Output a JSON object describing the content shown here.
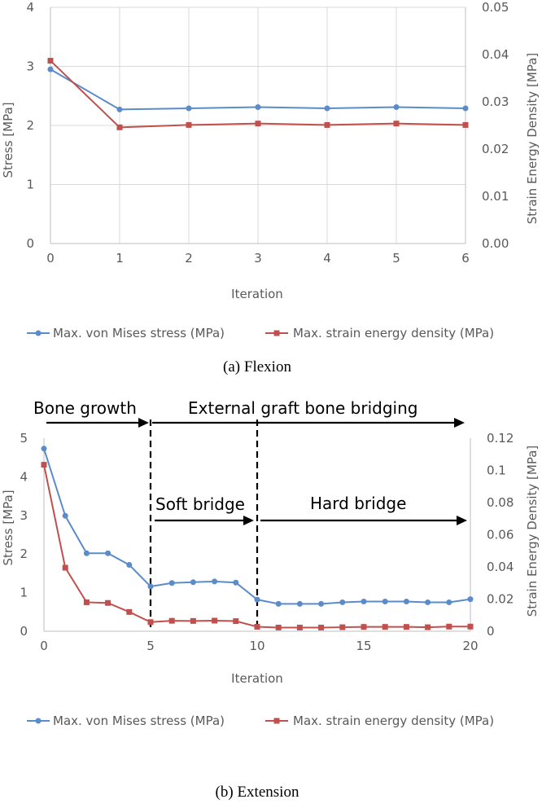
{
  "colors": {
    "series_a": "#5b8bc9",
    "series_b": "#c0504d",
    "grid": "#d9d9d9",
    "axis": "#bfbfbf",
    "text": "#595959"
  },
  "chart_data": [
    {
      "type": "line",
      "caption": "(a) Flexion",
      "xlabel": "Iteration",
      "ylabel": "Stress [MPa]",
      "y2label": "Strain Energy Density [MPa]",
      "xlim": [
        0,
        6
      ],
      "ylim": [
        0,
        4
      ],
      "y2lim": [
        0,
        0.05
      ],
      "xticks": [
        "0",
        "1",
        "2",
        "3",
        "4",
        "5",
        "6"
      ],
      "yticks": [
        "0",
        "1",
        "2",
        "3",
        "4"
      ],
      "y2ticks": [
        "0.00",
        "0.01",
        "0.02",
        "0.03",
        "0.04",
        "0.05"
      ],
      "grid": true,
      "legend_position": "bottom",
      "series": [
        {
          "name": "Max. von Mises stress (MPa)",
          "axis": "left",
          "marker": "circle",
          "x": [
            0,
            1,
            2,
            3,
            4,
            5,
            6
          ],
          "values": [
            2.95,
            2.27,
            2.29,
            2.31,
            2.29,
            2.31,
            2.29
          ]
        },
        {
          "name": "Max. strain energy density (MPa)",
          "axis": "right",
          "marker": "square",
          "x": [
            0,
            1,
            2,
            3,
            4,
            5,
            6
          ],
          "values": [
            0.0387,
            0.0246,
            0.0251,
            0.0254,
            0.0251,
            0.0254,
            0.0251
          ]
        }
      ]
    },
    {
      "type": "line",
      "caption": "(b) Extension",
      "xlabel": "Iteration",
      "ylabel": "Stress [MPa]",
      "y2label": "Strain Energy Density [MPa]",
      "xlim": [
        0,
        20
      ],
      "ylim": [
        0,
        5
      ],
      "y2lim": [
        0,
        0.12
      ],
      "xticks": [
        "0",
        "5",
        "10",
        "15",
        "20"
      ],
      "xtick_values": [
        0,
        5,
        10,
        15,
        20
      ],
      "yticks": [
        "0",
        "1",
        "2",
        "3",
        "4",
        "5"
      ],
      "y2ticks": [
        "0",
        "0.02",
        "0.04",
        "0.06",
        "0.08",
        "0.1",
        "0.12"
      ],
      "grid": false,
      "legend_position": "bottom",
      "series": [
        {
          "name": "Max. von Mises stress (MPa)",
          "axis": "left",
          "marker": "circle",
          "x": [
            0,
            1,
            2,
            3,
            4,
            5,
            6,
            7,
            8,
            9,
            10,
            11,
            12,
            13,
            14,
            15,
            16,
            17,
            18,
            19,
            20
          ],
          "values": [
            4.73,
            2.99,
            2.02,
            2.02,
            1.72,
            1.16,
            1.25,
            1.27,
            1.29,
            1.26,
            0.82,
            0.71,
            0.71,
            0.71,
            0.75,
            0.77,
            0.77,
            0.77,
            0.75,
            0.75,
            0.83
          ]
        },
        {
          "name": "Max. strain energy density (MPa)",
          "axis": "right",
          "marker": "square",
          "x": [
            0,
            1,
            2,
            3,
            4,
            5,
            6,
            7,
            8,
            9,
            10,
            11,
            12,
            13,
            14,
            15,
            16,
            17,
            18,
            19,
            20
          ],
          "values": [
            0.1035,
            0.0395,
            0.018,
            0.0176,
            0.012,
            0.0057,
            0.0065,
            0.0064,
            0.0066,
            0.0063,
            0.0028,
            0.0023,
            0.0023,
            0.0023,
            0.0025,
            0.0027,
            0.0027,
            0.0027,
            0.0025,
            0.0029,
            0.0029
          ]
        }
      ],
      "annotations": {
        "phase_arrows": [
          {
            "label": "Bone growth",
            "from": 0,
            "to": 5
          },
          {
            "label": "External graft bone bridging",
            "from": 5,
            "to": 20
          },
          {
            "label": "Soft bridge",
            "from": 5,
            "to": 10
          },
          {
            "label": "Hard bridge",
            "from": 10,
            "to": 20
          }
        ],
        "dividers": [
          5,
          10
        ]
      }
    }
  ]
}
